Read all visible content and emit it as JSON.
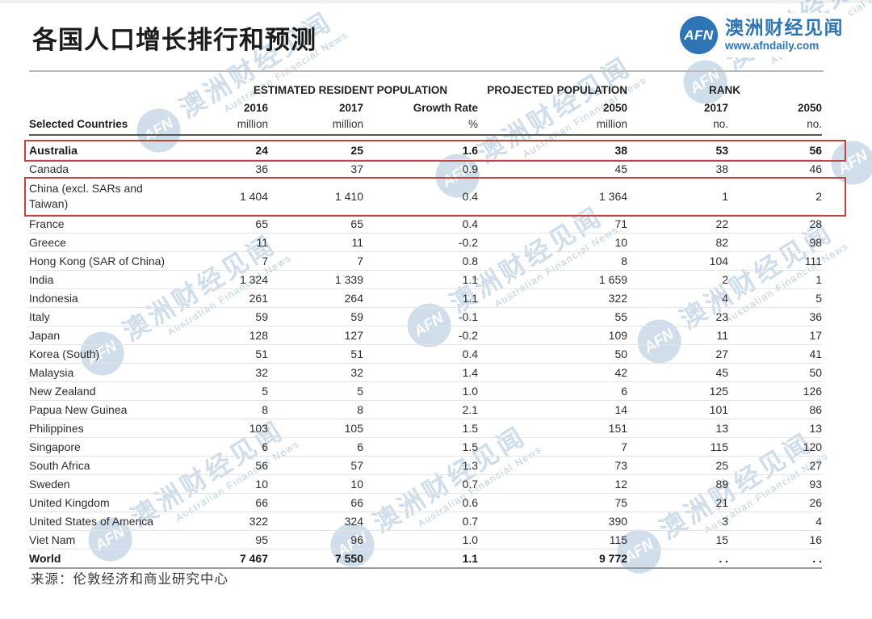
{
  "page": {
    "title": "各国人口增长排行和预测",
    "source": "来源：伦敦经济和商业研究中心"
  },
  "logo": {
    "abbr": "AFN",
    "name": "澳洲财经见闻",
    "url": "www.afndaily.com",
    "brand_color": "#2e75b6"
  },
  "watermark": {
    "abbr": "AFN",
    "name": "澳洲财经见闻",
    "subtitle": "Australian Financial News",
    "color": "#8cb0cd"
  },
  "table": {
    "col_groups": [
      {
        "label": "ESTIMATED RESIDENT POPULATION",
        "span": 3
      },
      {
        "label": "PROJECTED POPULATION",
        "span": 1
      },
      {
        "label": "RANK",
        "span": 2
      }
    ],
    "col_years": [
      "2016",
      "2017",
      "Growth Rate",
      "2050",
      "2017",
      "2050"
    ],
    "col_units": [
      "million",
      "million",
      "%",
      "million",
      "no.",
      "no."
    ],
    "row_header": "Selected Countries",
    "highlight_color": "#c0443c",
    "rows": [
      {
        "country": "Australia",
        "v2016": "24",
        "v2017": "25",
        "growth": "1.6",
        "v2050": "38",
        "rank2017": "53",
        "rank2050": "56",
        "bold": true,
        "highlight": true
      },
      {
        "country": "Canada",
        "v2016": "36",
        "v2017": "37",
        "growth": "0.9",
        "v2050": "45",
        "rank2017": "38",
        "rank2050": "46"
      },
      {
        "country": "China (excl. SARs and Taiwan)",
        "v2016": "1 404",
        "v2017": "1 410",
        "growth": "0.4",
        "v2050": "1 364",
        "rank2017": "1",
        "rank2050": "2",
        "wrap": true,
        "highlight": true
      },
      {
        "country": "France",
        "v2016": "65",
        "v2017": "65",
        "growth": "0.4",
        "v2050": "71",
        "rank2017": "22",
        "rank2050": "28"
      },
      {
        "country": "Greece",
        "v2016": "11",
        "v2017": "11",
        "growth": "-0.2",
        "v2050": "10",
        "rank2017": "82",
        "rank2050": "98"
      },
      {
        "country": "Hong Kong (SAR of China)",
        "v2016": "7",
        "v2017": "7",
        "growth": "0.8",
        "v2050": "8",
        "rank2017": "104",
        "rank2050": "111"
      },
      {
        "country": "India",
        "v2016": "1 324",
        "v2017": "1 339",
        "growth": "1.1",
        "v2050": "1 659",
        "rank2017": "2",
        "rank2050": "1"
      },
      {
        "country": "Indonesia",
        "v2016": "261",
        "v2017": "264",
        "growth": "1.1",
        "v2050": "322",
        "rank2017": "4",
        "rank2050": "5"
      },
      {
        "country": "Italy",
        "v2016": "59",
        "v2017": "59",
        "growth": "-0.1",
        "v2050": "55",
        "rank2017": "23",
        "rank2050": "36"
      },
      {
        "country": "Japan",
        "v2016": "128",
        "v2017": "127",
        "growth": "-0.2",
        "v2050": "109",
        "rank2017": "11",
        "rank2050": "17"
      },
      {
        "country": "Korea (South)",
        "v2016": "51",
        "v2017": "51",
        "growth": "0.4",
        "v2050": "50",
        "rank2017": "27",
        "rank2050": "41"
      },
      {
        "country": "Malaysia",
        "v2016": "32",
        "v2017": "32",
        "growth": "1.4",
        "v2050": "42",
        "rank2017": "45",
        "rank2050": "50"
      },
      {
        "country": "New Zealand",
        "v2016": "5",
        "v2017": "5",
        "growth": "1.0",
        "v2050": "6",
        "rank2017": "125",
        "rank2050": "126"
      },
      {
        "country": "Papua New Guinea",
        "v2016": "8",
        "v2017": "8",
        "growth": "2.1",
        "v2050": "14",
        "rank2017": "101",
        "rank2050": "86"
      },
      {
        "country": "Philippines",
        "v2016": "103",
        "v2017": "105",
        "growth": "1.5",
        "v2050": "151",
        "rank2017": "13",
        "rank2050": "13"
      },
      {
        "country": "Singapore",
        "v2016": "6",
        "v2017": "6",
        "growth": "1.5",
        "v2050": "7",
        "rank2017": "115",
        "rank2050": "120"
      },
      {
        "country": "South Africa",
        "v2016": "56",
        "v2017": "57",
        "growth": "1.3",
        "v2050": "73",
        "rank2017": "25",
        "rank2050": "27"
      },
      {
        "country": "Sweden",
        "v2016": "10",
        "v2017": "10",
        "growth": "0.7",
        "v2050": "12",
        "rank2017": "89",
        "rank2050": "93"
      },
      {
        "country": "United Kingdom",
        "v2016": "66",
        "v2017": "66",
        "growth": "0.6",
        "v2050": "75",
        "rank2017": "21",
        "rank2050": "26"
      },
      {
        "country": "United States of America",
        "v2016": "322",
        "v2017": "324",
        "growth": "0.7",
        "v2050": "390",
        "rank2017": "3",
        "rank2050": "4"
      },
      {
        "country": "Viet Nam",
        "v2016": "95",
        "v2017": "96",
        "growth": "1.0",
        "v2050": "115",
        "rank2017": "15",
        "rank2050": "16"
      },
      {
        "country": "World",
        "v2016": "7 467",
        "v2017": "7 550",
        "growth": "1.1",
        "v2050": "9 772",
        "rank2017": ". .",
        "rank2050": ". .",
        "bold": true,
        "last": true
      }
    ]
  }
}
